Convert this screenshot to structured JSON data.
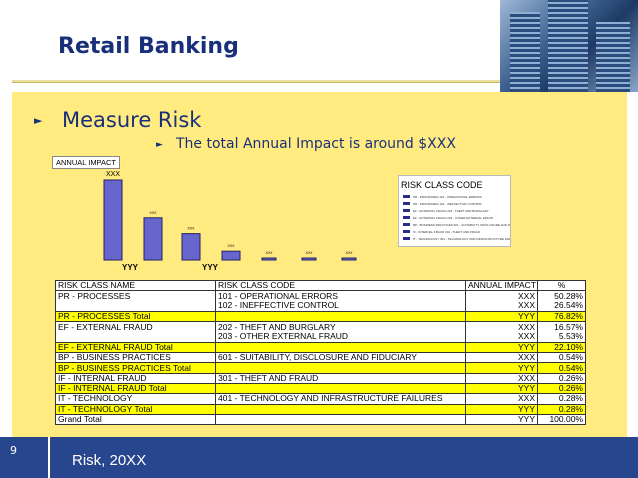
{
  "slide": {
    "title": "Retail Banking",
    "bullet1": "Measure Risk",
    "bullet2": "The total Annual Impact is around $XXX",
    "page_number": "9",
    "footer_text": "Risk, 20XX"
  },
  "chart_data": {
    "type": "bar",
    "title": "ANNUAL IMPACT",
    "categories": [
      "101",
      "102",
      "202",
      "203",
      "601",
      "301",
      "401"
    ],
    "values": [
      50.28,
      26.54,
      16.57,
      5.53,
      0.54,
      0.26,
      0.28
    ],
    "data_labels": [
      "XXX",
      "XXX",
      "XXX",
      "XXX",
      "XXX",
      "XXX",
      "XXX"
    ],
    "group_labels": [
      "YYY",
      "YYY"
    ],
    "legend_title": "RISK CLASS CODE",
    "legend": [
      "PR - PROCESSES 101 - OPERATIONAL ERRORS",
      "PR - PROCESSES 102 - INEFFECTIVE CONTROL",
      "EF - EXTERNAL FRAUD 202 - THEFT AND BURGLARY",
      "EF - EXTERNAL FRAUD 203 - OTHER EXTERNAL FRAUD",
      "BP - BUSINESS PRACTICES 601 - SUITABILITY, DISCLOSURE AND FIDUCIARY",
      "IF - INTERNAL FRAUD 301 - THEFT AND FRAUD",
      "IT - TECHNOLOGY 401 - TECHNOLOGY AND INFRASTRUCTURE FAILURES"
    ],
    "colors": {
      "bar": "#6666cc",
      "bar_edge": "#222266"
    }
  },
  "table": {
    "headers": [
      "RISK CLASS NAME",
      "RISK CLASS CODE",
      "ANNUAL IMPACT",
      "%"
    ],
    "rows": [
      {
        "name": "PR - PROCESSES",
        "code": "101 - OPERATIONAL ERRORS",
        "impact": "XXX",
        "pct": "50.28%",
        "total": false
      },
      {
        "name": "",
        "code": "102 - INEFFECTIVE CONTROL",
        "impact": "XXX",
        "pct": "26.54%",
        "total": false
      },
      {
        "name": "PR - PROCESSES Total",
        "code": "",
        "impact": "YYY",
        "pct": "76.82%",
        "total": true
      },
      {
        "name": "EF - EXTERNAL FRAUD",
        "code": "202 - THEFT AND BURGLARY",
        "impact": "XXX",
        "pct": "16.57%",
        "total": false
      },
      {
        "name": "",
        "code": "203 - OTHER EXTERNAL FRAUD",
        "impact": "XXX",
        "pct": "5.53%",
        "total": false
      },
      {
        "name": "EF - EXTERNAL FRAUD Total",
        "code": "",
        "impact": "YYY",
        "pct": "22.10%",
        "total": true
      },
      {
        "name": "BP - BUSINESS PRACTICES",
        "code": "601 - SUITABILITY, DISCLOSURE AND FIDUCIARY",
        "impact": "XXX",
        "pct": "0.54%",
        "total": false
      },
      {
        "name": "BP - BUSINESS PRACTICES Total",
        "code": "",
        "impact": "YYY",
        "pct": "0.54%",
        "total": true
      },
      {
        "name": "IF - INTERNAL FRAUD",
        "code": "301 - THEFT AND FRAUD",
        "impact": "XXX",
        "pct": "0.26%",
        "total": false
      },
      {
        "name": "IF - INTERNAL FRAUD Total",
        "code": "",
        "impact": "YYY",
        "pct": "0.26%",
        "total": true
      },
      {
        "name": "IT - TECHNOLOGY",
        "code": "401 - TECHNOLOGY AND INFRASTRUCTURE FAILURES",
        "impact": "XXX",
        "pct": "0.28%",
        "total": false
      },
      {
        "name": "IT - TECHNOLOGY Total",
        "code": "",
        "impact": "YYY",
        "pct": "0.28%",
        "total": true
      },
      {
        "name": "Grand Total",
        "code": "",
        "impact": "YYY",
        "pct": "100.00%",
        "total": false,
        "grand": true
      }
    ]
  }
}
